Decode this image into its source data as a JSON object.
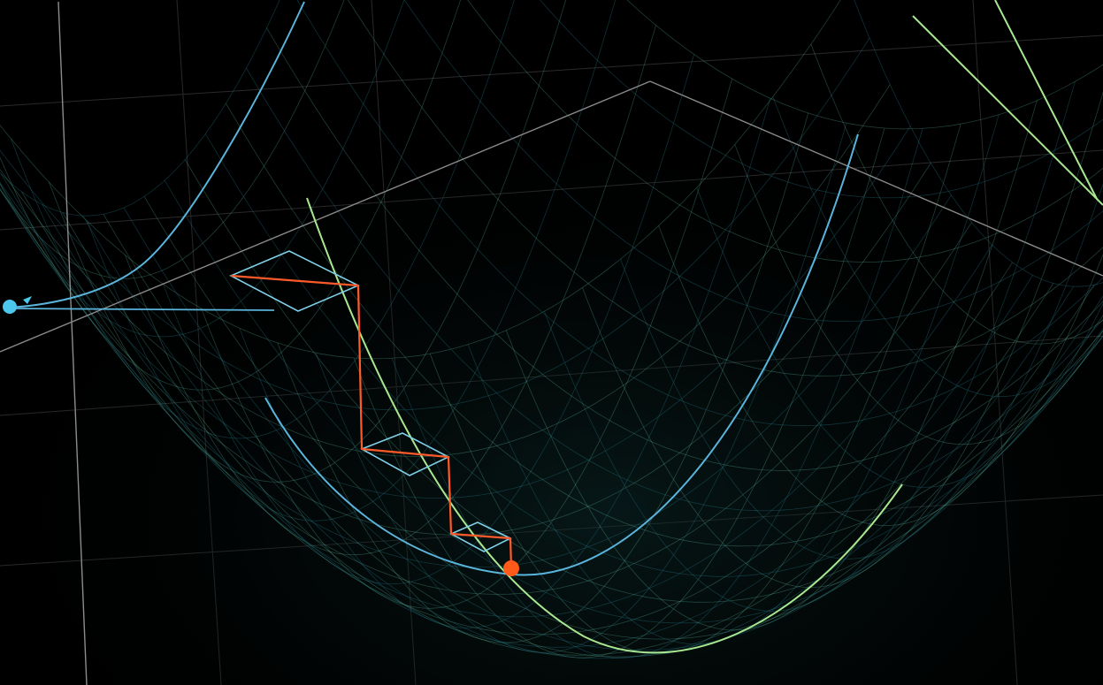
{
  "scene": {
    "type": "3d-surface-visualization",
    "surface": "paraboloid-bowl",
    "background_color": "#000000",
    "colors": {
      "mesh_light": "#6fe0c0",
      "mesh_dark": "#1f6b78",
      "axis": "#9a9a9a",
      "blue_curve": "#5ab4dc",
      "green_curve": "#a8e890",
      "path": "#ff5a2a",
      "point_start": "#4cc8ec",
      "point_end": "#ff5a1a"
    },
    "path_steps": 3,
    "icons": [
      "start-point-icon",
      "minimum-point-icon"
    ]
  }
}
